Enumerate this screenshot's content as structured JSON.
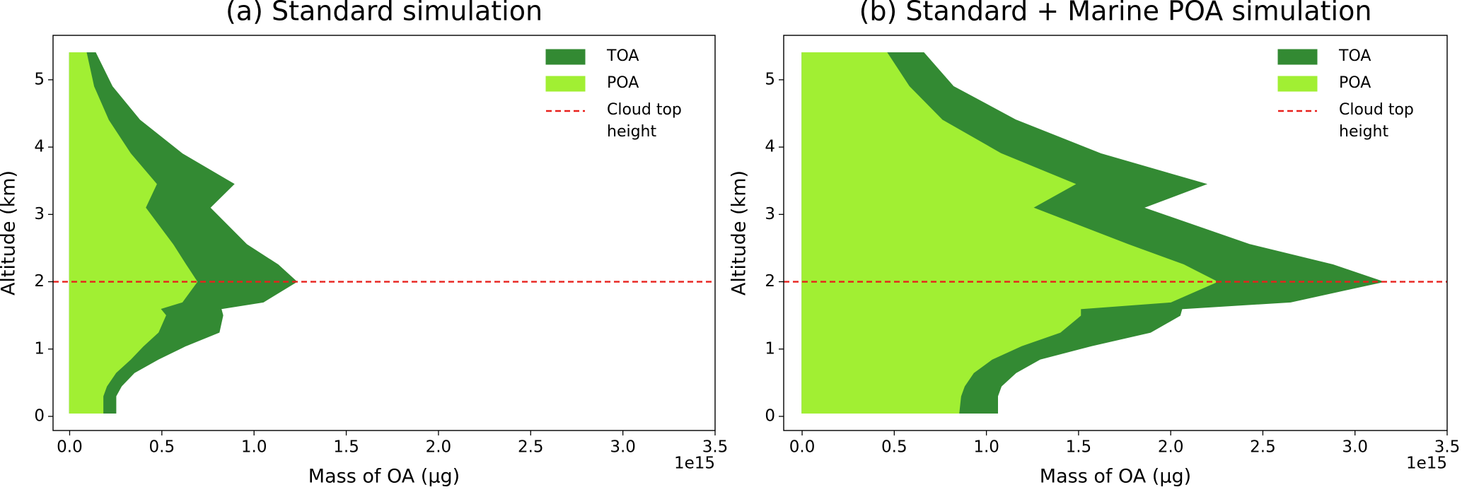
{
  "chart_data": [
    {
      "type": "area",
      "title": "(a) Standard simulation",
      "x_label": "Mass of OA (µg)",
      "y_label": "Altitude (km)",
      "x_offset_label": "1e15",
      "y": [
        0.05,
        0.3,
        0.45,
        0.65,
        0.85,
        1.05,
        1.25,
        1.5,
        1.6,
        1.7,
        2.0,
        2.25,
        2.55,
        3.1,
        3.45,
        3.9,
        4.4,
        4.9,
        5.4
      ],
      "series": [
        {
          "name": "TOA",
          "color": "#338a33",
          "values": [
            0.25,
            0.25,
            0.28,
            0.35,
            0.48,
            0.63,
            0.81,
            0.83,
            0.82,
            1.05,
            1.23,
            1.13,
            0.96,
            0.76,
            0.89,
            0.61,
            0.38,
            0.23,
            0.14
          ]
        },
        {
          "name": "POA",
          "color": "#a1ef33",
          "values": [
            0.18,
            0.18,
            0.2,
            0.25,
            0.33,
            0.4,
            0.48,
            0.52,
            0.49,
            0.61,
            0.69,
            0.63,
            0.56,
            0.41,
            0.47,
            0.33,
            0.21,
            0.13,
            0.09
          ]
        }
      ],
      "hline": {
        "value": 2.0,
        "label": "Cloud top height",
        "color": "#e8211c"
      },
      "xlim": [
        -0.09,
        3.5
      ],
      "ylim": [
        -0.21,
        5.66
      ],
      "xticks": [
        {
          "value": 0,
          "label": "0.0"
        },
        {
          "value": 0.5,
          "label": "0.5"
        },
        {
          "value": 1,
          "label": "1.0"
        },
        {
          "value": 1.5,
          "label": "1.5"
        },
        {
          "value": 2,
          "label": "2.0"
        },
        {
          "value": 2.5,
          "label": "2.5"
        },
        {
          "value": 3,
          "label": "3.0"
        },
        {
          "value": 3.5,
          "label": "3.5"
        }
      ],
      "yticks": [
        0,
        1,
        2,
        3,
        4,
        5
      ],
      "legend": "upper right"
    },
    {
      "type": "area",
      "title": "(b) Standard + Marine POA simulation",
      "x_label": "Mass of OA (µg)",
      "y_label": "Altitude (km)",
      "x_offset_label": "1e15",
      "y": [
        0.05,
        0.3,
        0.45,
        0.65,
        0.85,
        1.05,
        1.25,
        1.5,
        1.6,
        1.7,
        2.0,
        2.25,
        2.55,
        3.1,
        3.45,
        3.9,
        4.4,
        4.9,
        5.4
      ],
      "series": [
        {
          "name": "TOA",
          "color": "#338a33",
          "values": [
            1.06,
            1.06,
            1.08,
            1.16,
            1.29,
            1.57,
            1.89,
            2.05,
            2.06,
            2.65,
            3.15,
            2.88,
            2.43,
            1.85,
            2.19,
            1.62,
            1.16,
            0.82,
            0.66
          ]
        },
        {
          "name": "POA",
          "color": "#a1ef33",
          "values": [
            0.85,
            0.86,
            0.88,
            0.93,
            1.03,
            1.19,
            1.4,
            1.51,
            1.51,
            2.0,
            2.25,
            2.07,
            1.77,
            1.25,
            1.48,
            1.08,
            0.76,
            0.58,
            0.46
          ]
        }
      ],
      "hline": {
        "value": 2.0,
        "label": "Cloud top height",
        "color": "#e8211c"
      },
      "xlim": [
        -0.1,
        3.5
      ],
      "ylim": [
        -0.21,
        5.66
      ],
      "xticks": [
        {
          "value": 0,
          "label": "0.0"
        },
        {
          "value": 0.5,
          "label": "0.5"
        },
        {
          "value": 1,
          "label": "1.0"
        },
        {
          "value": 1.5,
          "label": "1.5"
        },
        {
          "value": 2,
          "label": "2.0"
        },
        {
          "value": 2.5,
          "label": "2.5"
        },
        {
          "value": 3,
          "label": "3.0"
        },
        {
          "value": 3.5,
          "label": "3.5"
        }
      ],
      "yticks": [
        0,
        1,
        2,
        3,
        4,
        5
      ],
      "legend": "upper right"
    }
  ]
}
